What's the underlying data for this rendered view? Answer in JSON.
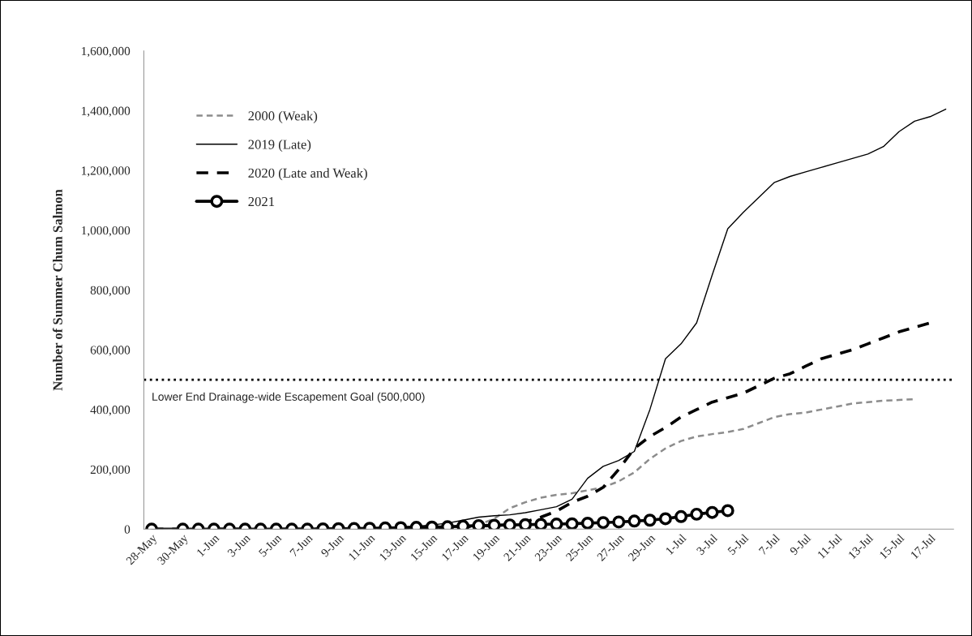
{
  "chart_data": {
    "type": "line",
    "ylabel": "Number of Summer Chum Salmon",
    "categories": [
      "28-May",
      null,
      "30-May",
      null,
      "1-Jun",
      null,
      "3-Jun",
      null,
      "5-Jun",
      null,
      "7-Jun",
      null,
      "9-Jun",
      null,
      "11-Jun",
      null,
      "13-Jun",
      null,
      "15-Jun",
      null,
      "17-Jun",
      null,
      "19-Jun",
      null,
      "21-Jun",
      null,
      "23-Jun",
      null,
      "25-Jun",
      null,
      "27-Jun",
      null,
      "29-Jun",
      null,
      "1-Jul",
      null,
      "3-Jul",
      null,
      "5-Jul",
      null,
      "7-Jul",
      null,
      "9-Jul",
      null,
      "11-Jul",
      null,
      "13-Jul",
      null,
      "15-Jul",
      null,
      "17-Jul",
      null
    ],
    "series": [
      {
        "name": "2000 (Weak)",
        "color": "#8c8c8c",
        "line_style": "dashed",
        "values": [
          0,
          0,
          0,
          0,
          0,
          0,
          0,
          0,
          0,
          0,
          0,
          0,
          0,
          500,
          1000,
          1500,
          2000,
          3000,
          4000,
          5000,
          8000,
          15000,
          35000,
          70000,
          90000,
          105000,
          115000,
          120000,
          130000,
          140000,
          160000,
          190000,
          235000,
          270000,
          295000,
          310000,
          318000,
          325000,
          335000,
          355000,
          375000,
          385000,
          390000,
          400000,
          410000,
          420000,
          425000,
          430000,
          432000,
          435000,
          null,
          null
        ]
      },
      {
        "name": "2019 (Late)",
        "color": "#000000",
        "line_style": "solid",
        "values": [
          0,
          0,
          0,
          0,
          0,
          0,
          0,
          0,
          0,
          0,
          0,
          0,
          0,
          2000,
          3000,
          5000,
          7000,
          10000,
          14000,
          20000,
          30000,
          40000,
          45000,
          48000,
          55000,
          65000,
          75000,
          100000,
          170000,
          210000,
          230000,
          260000,
          400000,
          570000,
          620000,
          690000,
          850000,
          1005000,
          1060000,
          1110000,
          1160000,
          1180000,
          1195000,
          1210000,
          1225000,
          1240000,
          1255000,
          1280000,
          1330000,
          1365000,
          1380000,
          1405000
        ]
      },
      {
        "name": "2020 (Late and Weak)",
        "color": "#000000",
        "line_style": "dashed",
        "values": [
          0,
          0,
          0,
          0,
          0,
          0,
          0,
          0,
          0,
          0,
          0,
          0,
          0,
          0,
          500,
          1000,
          1500,
          2000,
          3000,
          5000,
          8000,
          10000,
          12000,
          15000,
          25000,
          40000,
          60000,
          90000,
          110000,
          140000,
          200000,
          270000,
          310000,
          340000,
          375000,
          400000,
          425000,
          440000,
          455000,
          480000,
          505000,
          520000,
          545000,
          570000,
          585000,
          600000,
          620000,
          640000,
          660000,
          675000,
          690000,
          null
        ]
      },
      {
        "name": "2021",
        "color": "#000000",
        "line_style": "solid",
        "marker": "circle",
        "values": [
          0,
          null,
          0,
          0,
          0,
          0,
          0,
          0,
          0,
          0,
          0,
          1000,
          1500,
          2000,
          3000,
          4000,
          5000,
          6000,
          7000,
          8000,
          10000,
          12000,
          13000,
          14000,
          15000,
          16000,
          17000,
          18000,
          20000,
          22000,
          24000,
          27000,
          30000,
          35000,
          42000,
          50000,
          56000,
          62000,
          null,
          null,
          null,
          null,
          null,
          null,
          null,
          null,
          null,
          null,
          null,
          null,
          null,
          null
        ]
      }
    ],
    "ylim": [
      0,
      1600000
    ],
    "yticks": [
      {
        "value": 0,
        "label": "0"
      },
      {
        "value": 200000,
        "label": "200,000"
      },
      {
        "value": 400000,
        "label": "400,000"
      },
      {
        "value": 600000,
        "label": "600,000"
      },
      {
        "value": 800000,
        "label": "800,000"
      },
      {
        "value": 1000000,
        "label": "1,000,000"
      },
      {
        "value": 1200000,
        "label": "1,200,000"
      },
      {
        "value": 1400000,
        "label": "1,400,000"
      },
      {
        "value": 1600000,
        "label": "1,600,000"
      }
    ],
    "ref_lines": [
      {
        "axis": "y",
        "value": 500000,
        "label": "Lower End Drainage-wide Escapement Goal (500,000)",
        "color": "#000000",
        "line_style": "dotted"
      }
    ],
    "grid": false,
    "legend": "top left"
  }
}
